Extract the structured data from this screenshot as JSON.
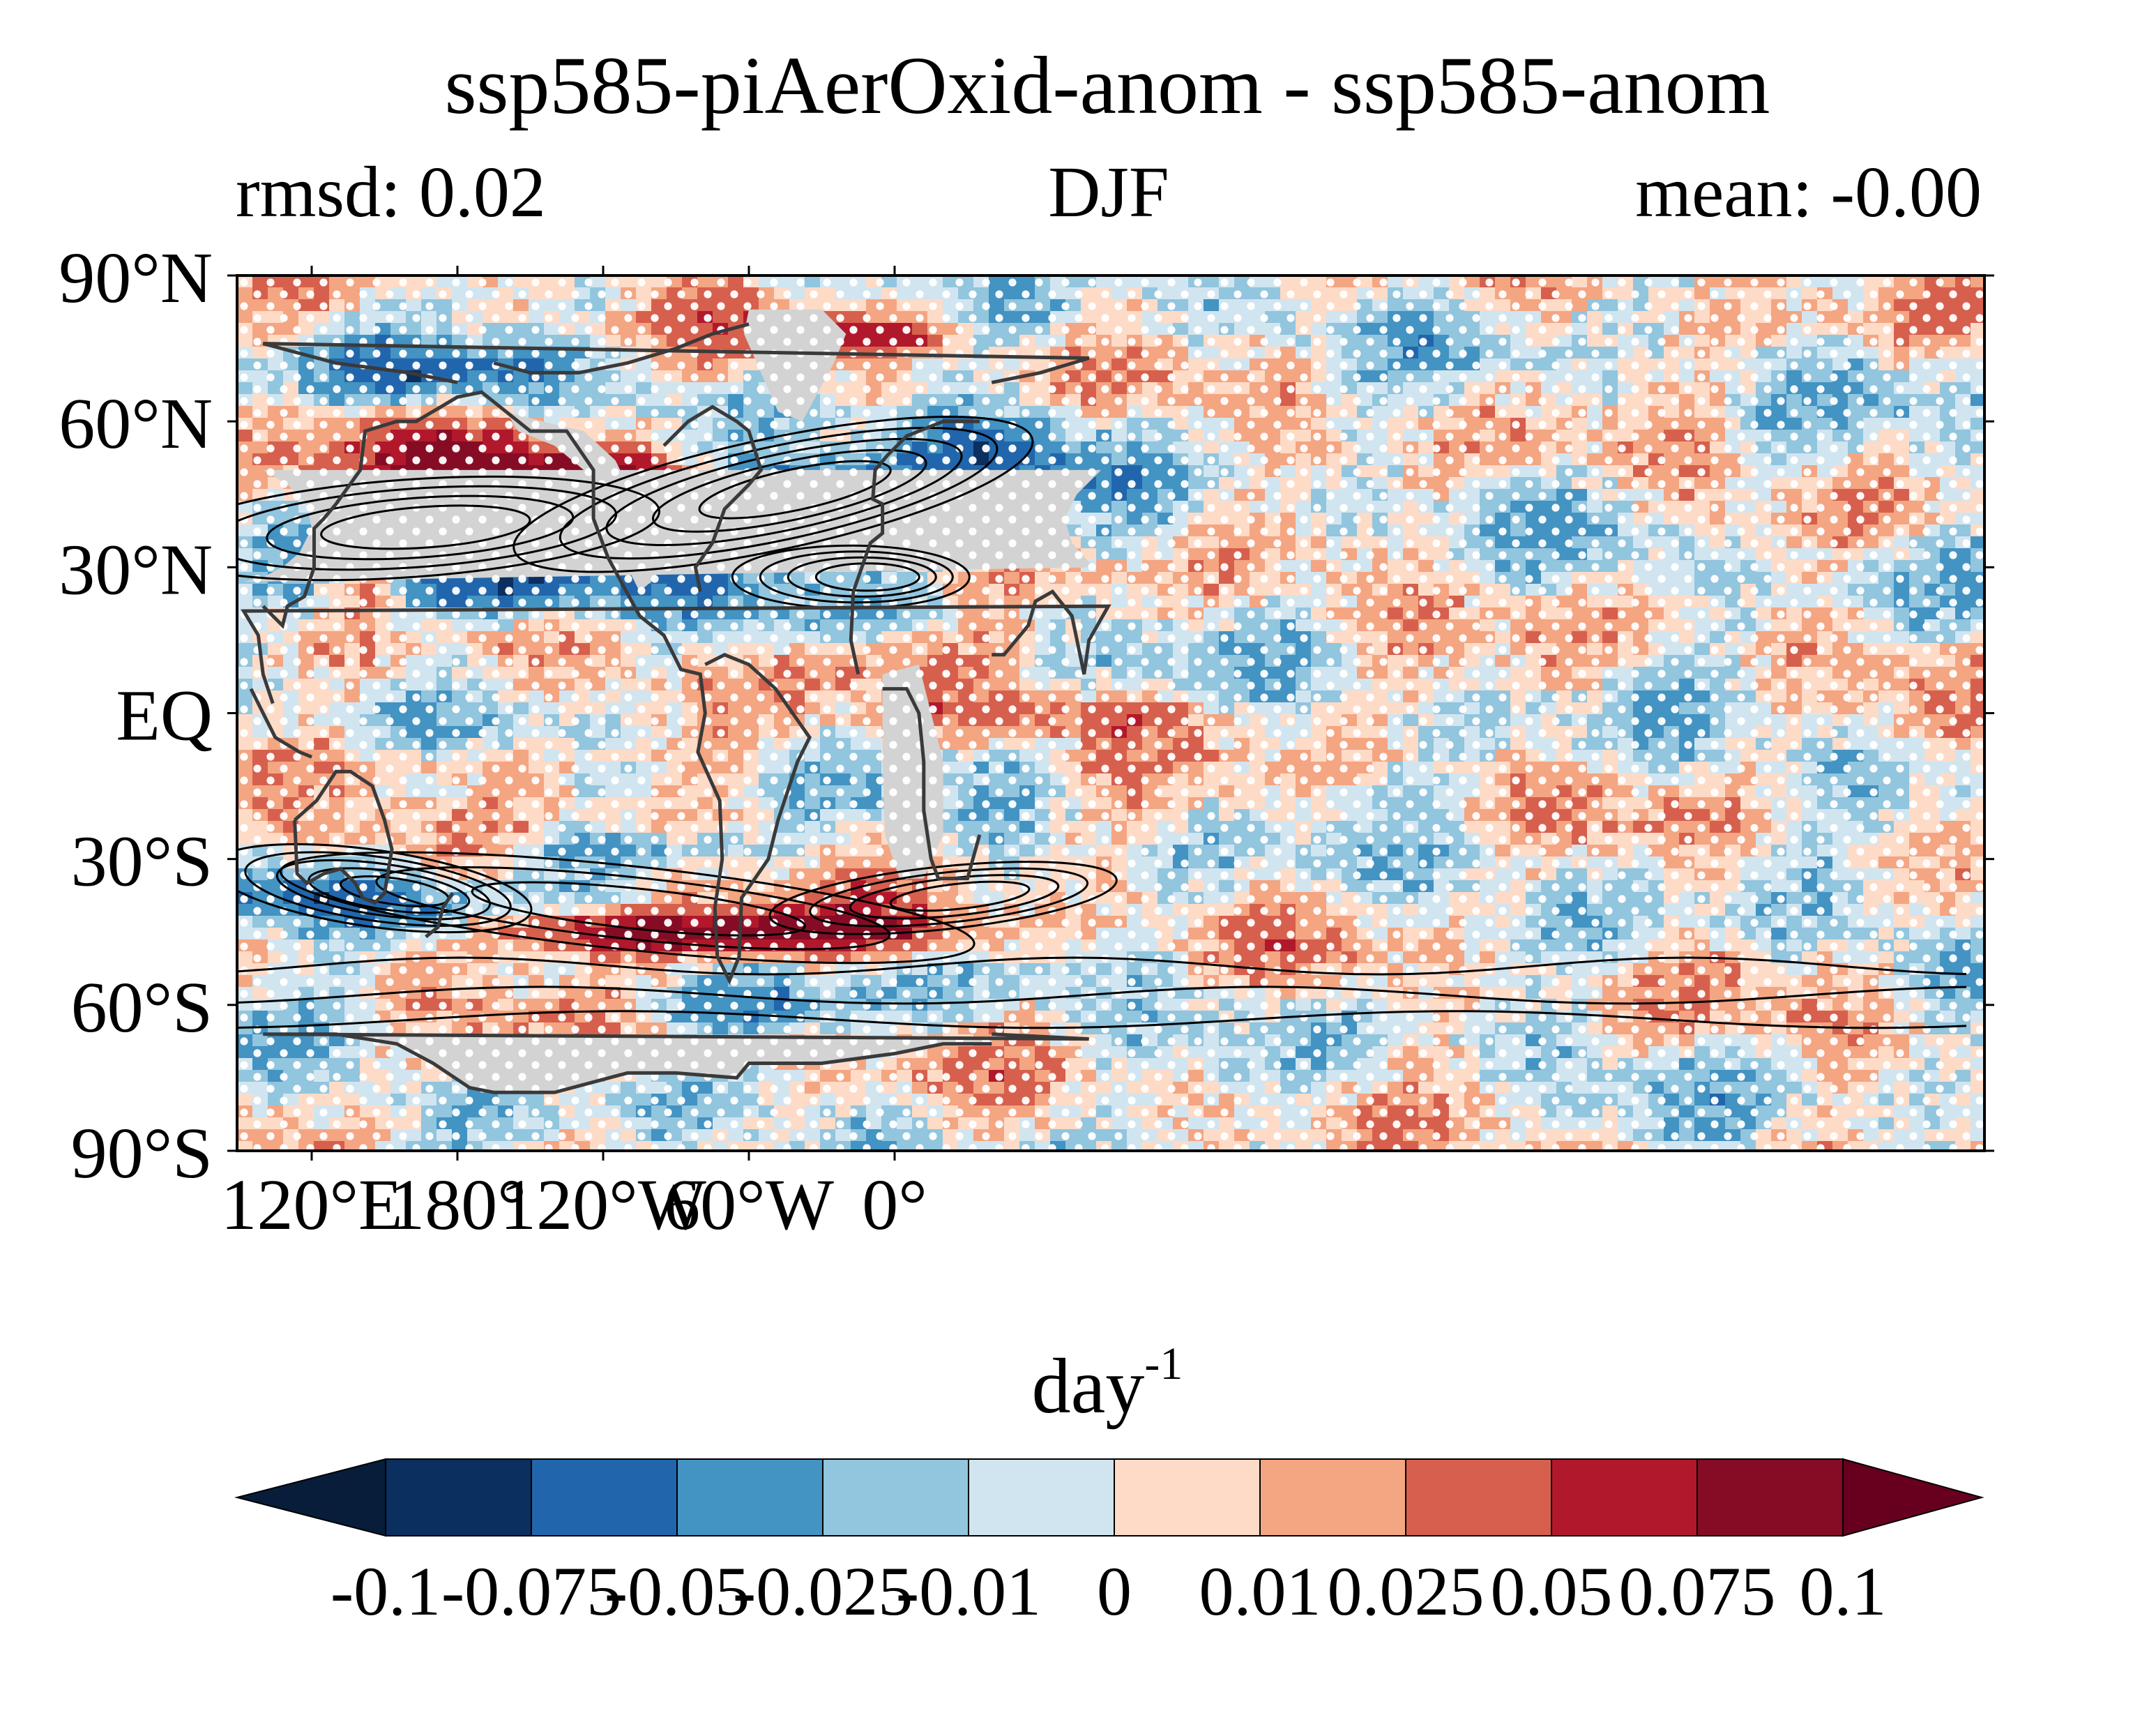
{
  "title": "ssp585-piAerOxid-anom - ssp585-anom",
  "subtitle_left": "rmsd: 0.02",
  "subtitle_center": "DJF",
  "subtitle_right": "mean: -0.00",
  "map": {
    "lat_labels": [
      "90°N",
      "60°N",
      "30°N",
      "EQ",
      "30°S",
      "60°S",
      "90°S"
    ],
    "lon_labels": [
      "120°E",
      "180°",
      "120°W",
      "60°W",
      "0°"
    ],
    "land_color": "#d3d3d3",
    "stipple_color": "#ffffff",
    "contour_color": "#000000"
  },
  "colorbar": {
    "label_base": "day",
    "label_exp": "-1",
    "ticks": [
      "-0.1",
      "-0.075",
      "-0.05",
      "-0.025",
      "-0.01",
      "0",
      "0.01",
      "0.025",
      "0.05",
      "0.075",
      "0.1"
    ],
    "colors": [
      "#0b2f5e",
      "#2166ac",
      "#4393c3",
      "#92c5de",
      "#d1e5f0",
      "#fddbc7",
      "#f4a582",
      "#d6604d",
      "#b2182b",
      "#860c25"
    ],
    "under_color": "#071d3a",
    "over_color": "#67001f",
    "extend": "both"
  }
}
